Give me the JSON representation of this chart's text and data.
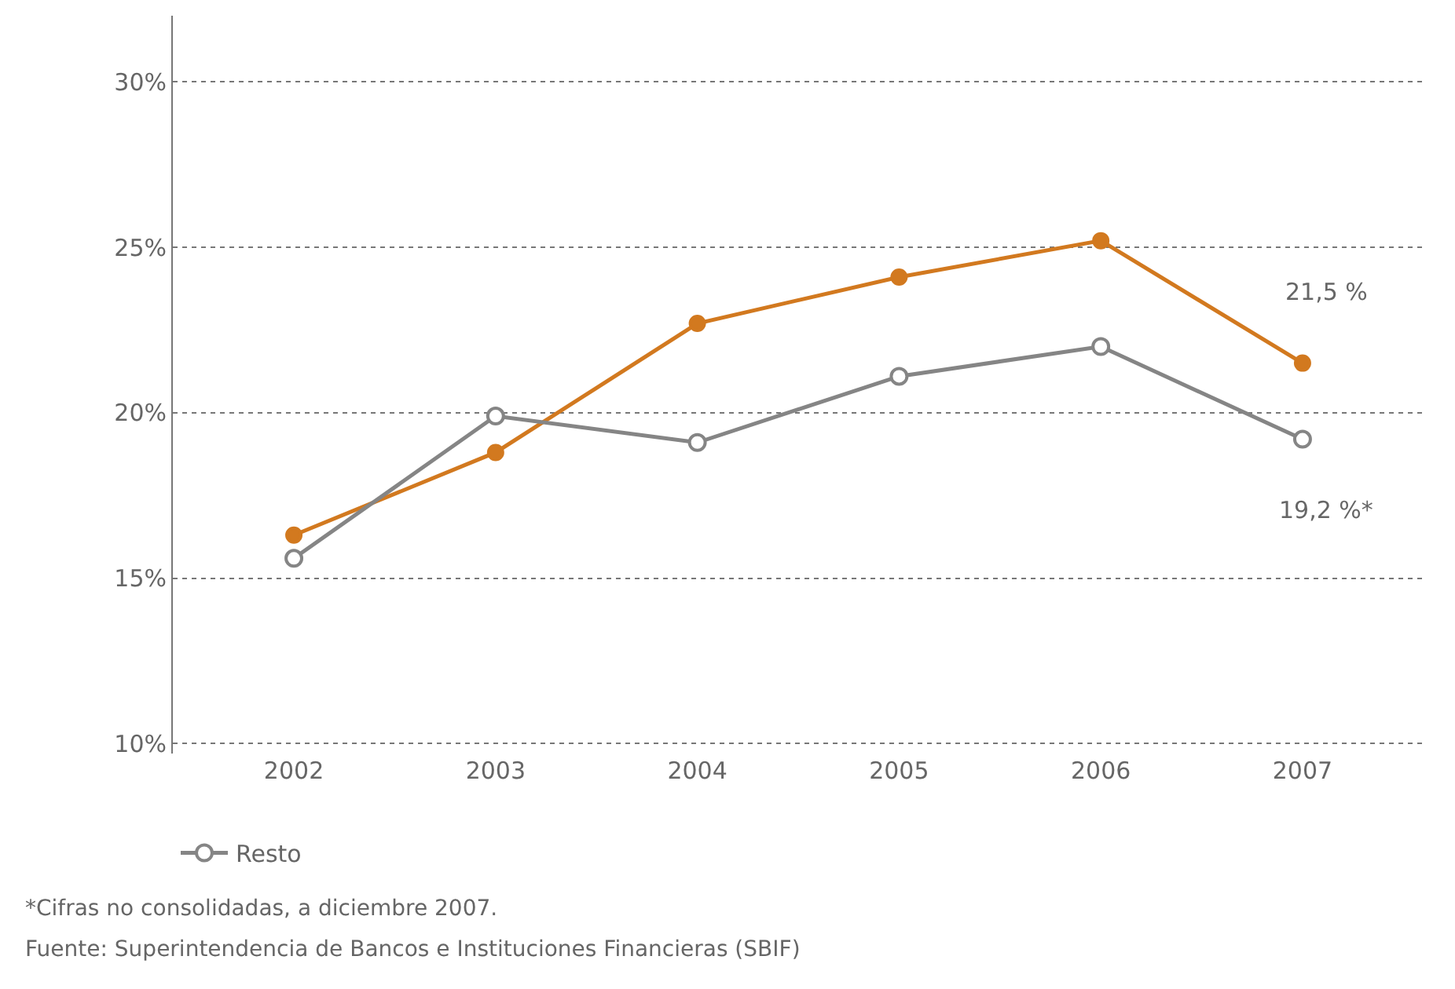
{
  "chart_data": {
    "type": "line",
    "categories": [
      "2002",
      "2003",
      "2004",
      "2005",
      "2006",
      "2007"
    ],
    "series": [
      {
        "color": "#d2791f",
        "values": [
          16.3,
          18.8,
          22.7,
          24.1,
          25.2,
          21.5
        ],
        "marker": "circle"
      },
      {
        "name": "Resto",
        "color": "#858585",
        "values": [
          15.6,
          19.9,
          19.1,
          21.1,
          22.0,
          19.2
        ],
        "marker": "circle-open"
      }
    ],
    "ylim": [
      9.7,
      32
    ],
    "yticks": [
      {
        "value": 10,
        "label": "10%"
      },
      {
        "value": 15,
        "label": "15%"
      },
      {
        "value": 20,
        "label": "20%"
      },
      {
        "value": 25,
        "label": "25%"
      },
      {
        "value": 30,
        "label": "30%"
      }
    ],
    "grid": "y",
    "legend": "bottom",
    "annotations": [
      {
        "text": "21,5 %",
        "x": "2007",
        "y": 21.5
      },
      {
        "text": "19,2 %*",
        "x": "2007",
        "y": 19.2
      },
      "*Cifras no consolidadas, a diciembre 2007.",
      "Fuente: Superintendencia de Bancos e Instituciones Financieras (SBIF)"
    ]
  }
}
